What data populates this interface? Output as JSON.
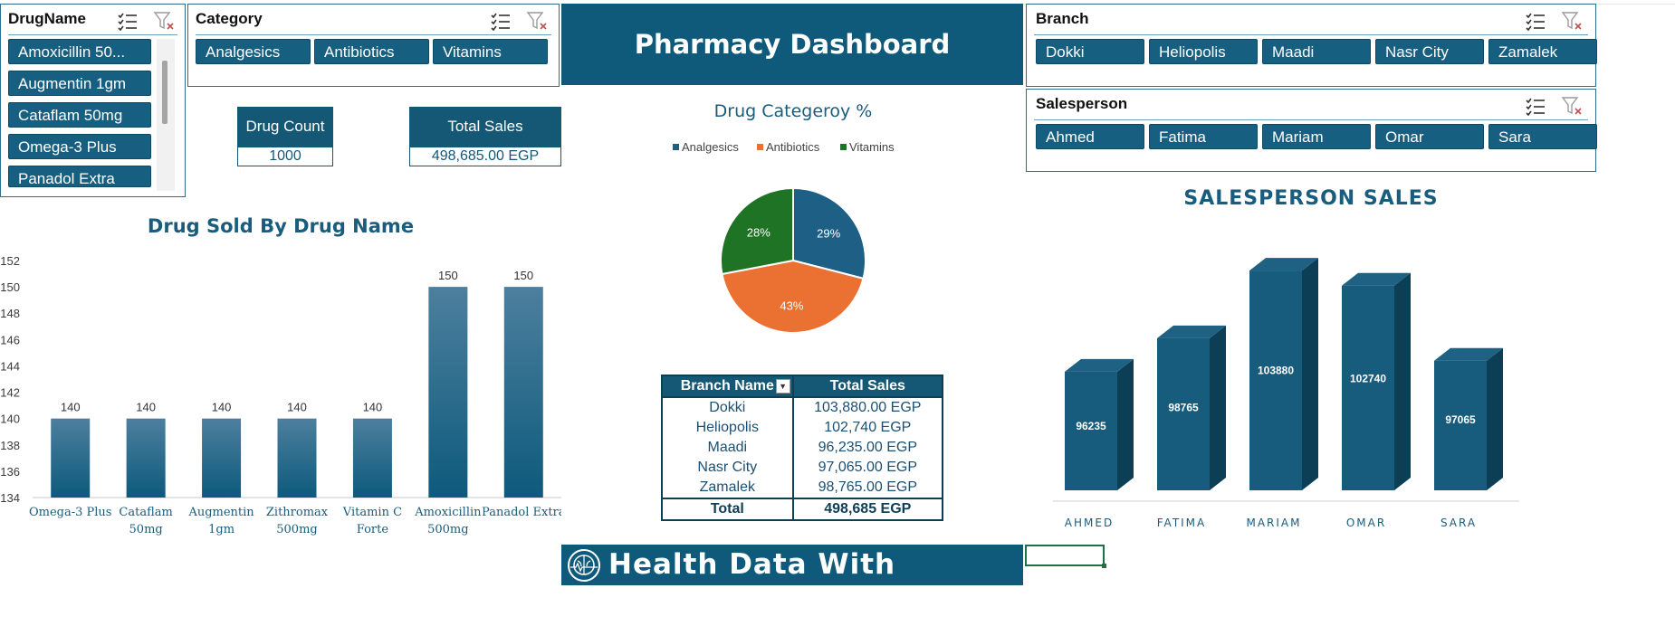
{
  "slicers": {
    "drugname": {
      "title": "DrugName",
      "items": [
        "Amoxicillin 50...",
        "Augmentin 1gm",
        "Cataflam 50mg",
        "Omega-3 Plus",
        "Panadol Extra"
      ]
    },
    "category": {
      "title": "Category",
      "items": [
        "Analgesics",
        "Antibiotics",
        "Vitamins"
      ]
    },
    "branch": {
      "title": "Branch",
      "items": [
        "Dokki",
        "Heliopolis",
        "Maadi",
        "Nasr City",
        "Zamalek"
      ]
    },
    "salesperson": {
      "title": "Salesperson",
      "items": [
        "Ahmed",
        "Fatima",
        "Mariam",
        "Omar",
        "Sara"
      ]
    }
  },
  "dashboard": {
    "title": "Pharmacy Dashboard"
  },
  "kpis": {
    "drug_count": {
      "label": "Drug Count",
      "value": "1000"
    },
    "total_sales": {
      "label": "Total Sales",
      "value": "498,685.00 EGP"
    }
  },
  "pivot": {
    "headers": [
      "Branch Name",
      "Total Sales"
    ],
    "rows": [
      {
        "branch": "Dokki",
        "sales": "103,880.00 EGP"
      },
      {
        "branch": "Heliopolis",
        "sales": "102,740 EGP"
      },
      {
        "branch": "Maadi",
        "sales": "96,235.00 EGP"
      },
      {
        "branch": "Nasr City",
        "sales": "97,065.00 EGP"
      },
      {
        "branch": "Zamalek",
        "sales": "98,765.00 EGP"
      }
    ],
    "total_label": "Total",
    "total_value": "498,685 EGP"
  },
  "footer": {
    "text": "Health Data With Mohaned"
  },
  "colors": {
    "primary": "#155876",
    "banner": "#0f5a7a",
    "orange": "#ea7132",
    "green": "#1f7325",
    "title": "#1a5c7e"
  },
  "icons": [
    "multi-select-icon",
    "clear-filter-icon",
    "dropdown-arrow-icon",
    "brain-logo-icon"
  ],
  "chart_data": [
    {
      "type": "bar",
      "title": "Drug Sold By Drug Name",
      "categories": [
        "Omega-3 Plus",
        "Cataflam 50mg",
        "Augmentin 1gm",
        "Zithromax 500mg",
        "Vitamin C Forte",
        "Amoxicillin 500mg",
        "Panadol Extra"
      ],
      "values": [
        140,
        140,
        140,
        140,
        140,
        150,
        150
      ],
      "ylim": [
        134,
        152
      ],
      "yticks": [
        134,
        136,
        138,
        140,
        142,
        144,
        146,
        148,
        150,
        152
      ],
      "data_labels": true,
      "grid": false
    },
    {
      "type": "pie",
      "title": "Drug Categeroy %",
      "legend": [
        "Analgesics",
        "Antibiotics",
        "Vitamins"
      ],
      "legend_position": "top",
      "values": [
        29,
        43,
        28
      ],
      "labels": [
        "29%",
        "43%",
        "28%"
      ],
      "colors": [
        "#1d5f85",
        "#ea7132",
        "#1f7325"
      ]
    },
    {
      "type": "bar",
      "title": "SALESPERSON SALES",
      "categories": [
        "AHMED",
        "FATIMA",
        "MARIAM",
        "OMAR",
        "SARA"
      ],
      "values": [
        96235,
        98765,
        103880,
        102740,
        97065
      ],
      "data_labels": true,
      "style": "3d-column"
    }
  ]
}
